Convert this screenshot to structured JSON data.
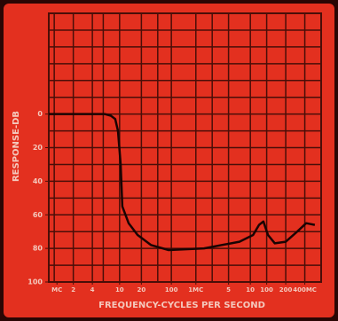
{
  "chart_data": {
    "type": "line",
    "y_label": "RESPONSE-DB",
    "x_label": "FREQUENCY-CYCLES PER SECOND",
    "xlim": [
      0,
      100
    ],
    "ylim": [
      -60,
      100
    ],
    "y_inverted": true,
    "xticks": [
      {
        "value": 3,
        "label": "MC"
      },
      {
        "value": 9,
        "label": "2"
      },
      {
        "value": 16,
        "label": "4"
      },
      {
        "value": 26,
        "label": "10"
      },
      {
        "value": 34,
        "label": "20"
      },
      {
        "value": 45,
        "label": "100"
      },
      {
        "value": 54,
        "label": "1MC"
      },
      {
        "value": 66,
        "label": "5"
      },
      {
        "value": 74,
        "label": "10"
      },
      {
        "value": 80,
        "label": "100"
      },
      {
        "value": 87,
        "label": "200"
      },
      {
        "value": 94,
        "label": "400MC"
      }
    ],
    "yticks": [
      0,
      20,
      40,
      60,
      80,
      100
    ],
    "xgrid": [
      2,
      9,
      16,
      20,
      26,
      34,
      40,
      45,
      54,
      60,
      66,
      74,
      80,
      87,
      94
    ],
    "ygrid": [
      -50,
      -40,
      -30,
      -20,
      -10,
      0,
      10,
      20,
      30,
      40,
      50,
      60,
      70,
      80,
      90
    ],
    "grid": true,
    "background": "#e3301f",
    "grid_color": "#4a0e08",
    "series": [
      {
        "color": "#1a0403",
        "x": [
          0,
          20.5,
          22.8,
          24.4,
          25.4,
          26.4,
          27,
          29.3,
          32.6,
          37.5,
          44,
          57,
          70,
          75,
          77.2,
          78.8,
          80.5,
          83,
          87,
          91.2,
          94.5,
          97.7
        ],
        "values": [
          0,
          0,
          1,
          3,
          10,
          30,
          55,
          65,
          72,
          78,
          81,
          80,
          76,
          72,
          66,
          64,
          72,
          77,
          76,
          70,
          65,
          66
        ]
      }
    ]
  }
}
